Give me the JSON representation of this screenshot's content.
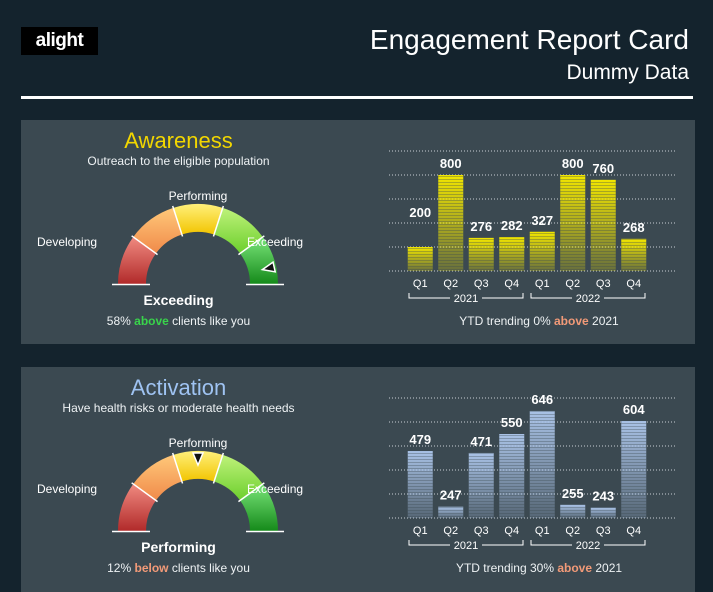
{
  "header": {
    "logo": "alight",
    "title": "Engagement Report Card",
    "subtitle": "Dummy Data"
  },
  "colors": {
    "awareness_title": "#f2d600",
    "activation_title": "#9fc3f2",
    "above": "#39d34b",
    "below": "#f29a78",
    "panel": "#3b4951",
    "background": "#14232d"
  },
  "gauge_labels": {
    "developing": "Developing",
    "performing": "Performing",
    "exceeding": "Exceeding"
  },
  "panels": [
    {
      "id": "awareness",
      "title": "Awareness",
      "subtitle": "Outreach to the eligible population",
      "status": "Exceeding",
      "gauge_level": 0.93,
      "compare_pre": "58% ",
      "compare_word": "above",
      "compare_post": " clients like you",
      "trend_pre": "YTD trending 0% ",
      "trend_word": "above",
      "trend_post": "  2021"
    },
    {
      "id": "activation",
      "title": "Activation",
      "subtitle": "Have health risks or moderate health needs",
      "status": "Performing",
      "gauge_level": 0.5,
      "compare_pre": "12% ",
      "compare_word": "below",
      "compare_post": " clients like you",
      "trend_pre": "YTD trending 30% ",
      "trend_word": "above",
      "trend_post": "  2021"
    }
  ],
  "chart_data": [
    {
      "type": "bar",
      "categories": [
        "Q1",
        "Q2",
        "Q3",
        "Q4",
        "Q1",
        "Q2",
        "Q3",
        "Q4"
      ],
      "groups": [
        "2021",
        "2022"
      ],
      "values": [
        200,
        800,
        276,
        282,
        327,
        800,
        760,
        268
      ],
      "ylim": [
        0,
        1000
      ],
      "grid": true,
      "bar_color": "#f2e600"
    },
    {
      "type": "bar",
      "categories": [
        "Q1",
        "Q2",
        "Q3",
        "Q4",
        "Q1",
        "Q2",
        "Q3",
        "Q4"
      ],
      "groups": [
        "2021",
        "2022"
      ],
      "values": [
        479,
        247,
        471,
        550,
        646,
        255,
        243,
        604
      ],
      "ylim": [
        200,
        700
      ],
      "grid": true,
      "bar_color": "#a9c2e6"
    }
  ]
}
